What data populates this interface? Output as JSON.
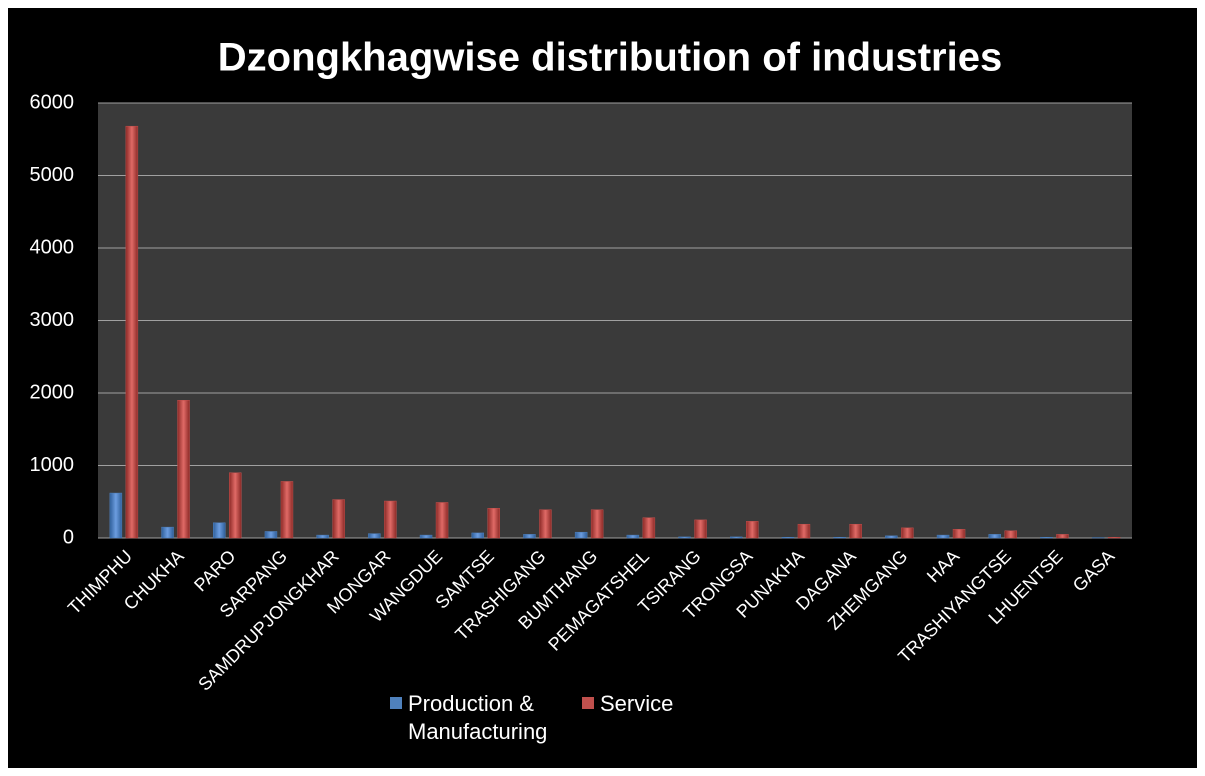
{
  "chart_data": {
    "type": "bar",
    "title": "Dzongkhagwise distribution of industries",
    "categories": [
      "THIMPHU",
      "CHUKHA",
      "PARO",
      "SARPANG",
      "SAMDRUPJONGKHAR",
      "MONGAR",
      "WANGDUE",
      "SAMTSE",
      "TRASHIGANG",
      "BUMTHANG",
      "PEMAGATSHEL",
      "TSIRANG",
      "TRONGSA",
      "PUNAKHA",
      "DAGANA",
      "ZHEMGANG",
      "HAA",
      "TRASHIYANGTSE",
      "LHUENTSE",
      "GASA"
    ],
    "series": [
      {
        "name": "Production & Manufacturing",
        "color": "#4f81bd",
        "values": [
          620,
          150,
          210,
          90,
          40,
          60,
          40,
          70,
          50,
          80,
          40,
          15,
          15,
          10,
          10,
          30,
          40,
          50,
          10,
          5
        ]
      },
      {
        "name": "Service",
        "color": "#c0504d",
        "values": [
          5680,
          1900,
          900,
          780,
          530,
          510,
          490,
          410,
          390,
          390,
          280,
          250,
          230,
          190,
          190,
          140,
          120,
          100,
          50,
          10
        ]
      }
    ],
    "ylim": [
      0,
      6000
    ],
    "yticks": [
      0,
      1000,
      2000,
      3000,
      4000,
      5000,
      6000
    ],
    "grid": true
  }
}
